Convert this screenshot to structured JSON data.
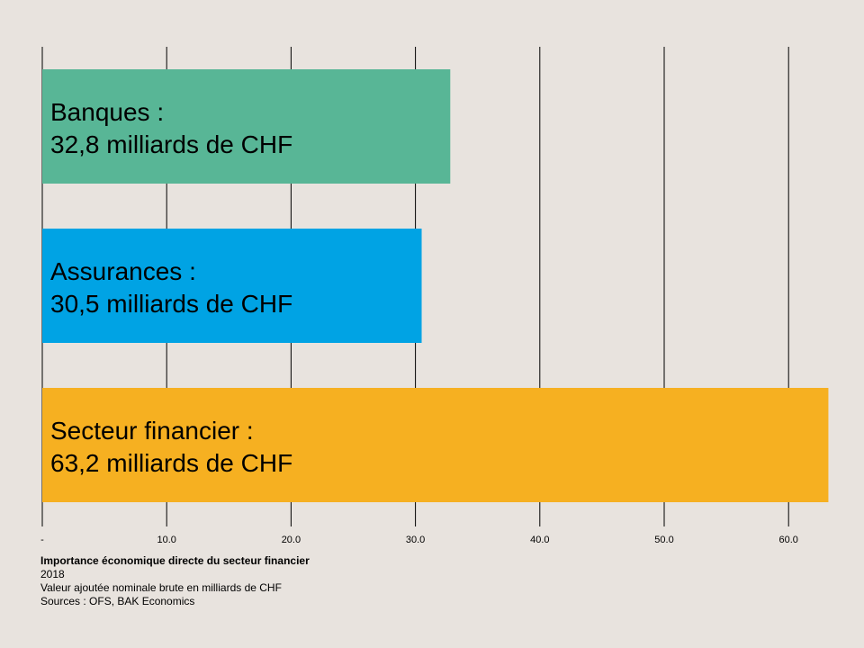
{
  "chart_data": {
    "type": "bar",
    "orientation": "horizontal",
    "categories": [
      "Banques",
      "Assurances",
      "Secteur financier"
    ],
    "values": [
      32.8,
      30.5,
      63.2
    ],
    "bar_labels": [
      [
        "Banques :",
        "32,8 milliards de CHF"
      ],
      [
        "Assurances :",
        "30,5 milliards de CHF"
      ],
      [
        "Secteur financier :",
        "63,2 milliards de CHF"
      ]
    ],
    "colors": [
      "#58b696",
      "#00a3e4",
      "#f6b021"
    ],
    "xlim": [
      0,
      63.2
    ],
    "xticks": [
      0,
      10,
      20,
      30,
      40,
      50,
      60
    ],
    "xtick_labels": [
      "-",
      "10.0",
      "20.0",
      "30.0",
      "40.0",
      "50.0",
      "60.0"
    ],
    "grid": true,
    "title": "Importance économique directe du secteur financier",
    "subtitle": "2018",
    "note": "Valeur ajoutée nominale brute en milliards de CHF",
    "source": "Sources : OFS, BAK Economics"
  }
}
